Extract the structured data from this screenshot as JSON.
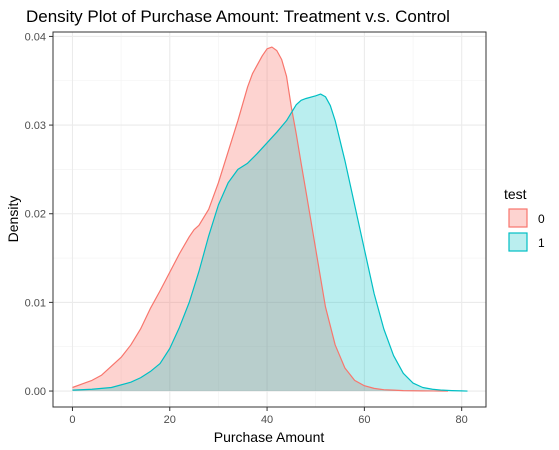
{
  "chart_data": {
    "type": "area",
    "title": "Density Plot of Purchase Amount: Treatment v.s. Control",
    "xlabel": "Purchase Amount",
    "ylabel": "Density",
    "xlim": [
      -4,
      85
    ],
    "ylim": [
      -0.0018,
      0.0405
    ],
    "x_ticks": [
      0,
      20,
      40,
      60,
      80
    ],
    "y_ticks": [
      0.0,
      0.01,
      0.02,
      0.03,
      0.04
    ],
    "y_tick_labels": [
      "0.00",
      "0.01",
      "0.02",
      "0.03",
      "0.04"
    ],
    "grid": true,
    "legend": {
      "title": "test",
      "position": "right"
    },
    "series": [
      {
        "name": "0",
        "color": "#F8766D",
        "fill": "rgba(248,118,109,0.32)",
        "x": [
          0,
          2,
          4,
          6,
          8,
          10,
          12,
          14,
          16,
          18,
          20,
          22,
          24,
          25,
          26,
          28,
          30,
          32,
          34,
          36,
          37,
          38,
          39,
          40,
          41,
          42,
          43,
          44,
          45,
          46,
          47,
          48,
          50,
          52,
          54,
          56,
          58,
          60,
          62,
          64,
          66,
          68,
          70,
          72,
          74,
          76,
          77.2
        ],
        "y": [
          0.0004,
          0.0008,
          0.0012,
          0.0018,
          0.0028,
          0.0038,
          0.0052,
          0.007,
          0.0093,
          0.0113,
          0.0134,
          0.0155,
          0.0174,
          0.0182,
          0.0187,
          0.0205,
          0.0235,
          0.027,
          0.0305,
          0.0343,
          0.0358,
          0.0368,
          0.0378,
          0.0386,
          0.0388,
          0.0384,
          0.0374,
          0.0355,
          0.032,
          0.029,
          0.0257,
          0.0225,
          0.016,
          0.0095,
          0.0052,
          0.0026,
          0.0012,
          0.0006,
          0.0003,
          0.00015,
          0.0001,
          5e-05,
          3e-05,
          2e-05,
          1e-05,
          5e-06,
          0.0
        ]
      },
      {
        "name": "1",
        "color": "#00BFC4",
        "fill": "rgba(0,191,196,0.27)",
        "x": [
          0,
          4,
          8,
          12,
          14,
          16,
          18,
          20,
          22,
          24,
          26,
          28,
          30,
          32,
          34,
          36,
          38,
          40,
          42,
          44,
          46,
          47,
          48,
          50,
          51,
          52,
          53,
          54,
          56,
          58,
          60,
          62,
          64,
          66,
          68,
          70,
          72,
          74,
          76,
          78,
          80,
          81.2
        ],
        "y": [
          0.0001,
          0.0002,
          0.0004,
          0.001,
          0.0015,
          0.0022,
          0.0031,
          0.0048,
          0.0072,
          0.01,
          0.0135,
          0.0175,
          0.021,
          0.0235,
          0.025,
          0.0257,
          0.0268,
          0.028,
          0.0292,
          0.0305,
          0.0323,
          0.0328,
          0.033,
          0.0333,
          0.0335,
          0.0332,
          0.0322,
          0.0305,
          0.026,
          0.021,
          0.016,
          0.011,
          0.007,
          0.004,
          0.002,
          0.0009,
          0.0004,
          0.0002,
          0.0001,
          5e-05,
          2e-05,
          0.0
        ]
      }
    ]
  }
}
